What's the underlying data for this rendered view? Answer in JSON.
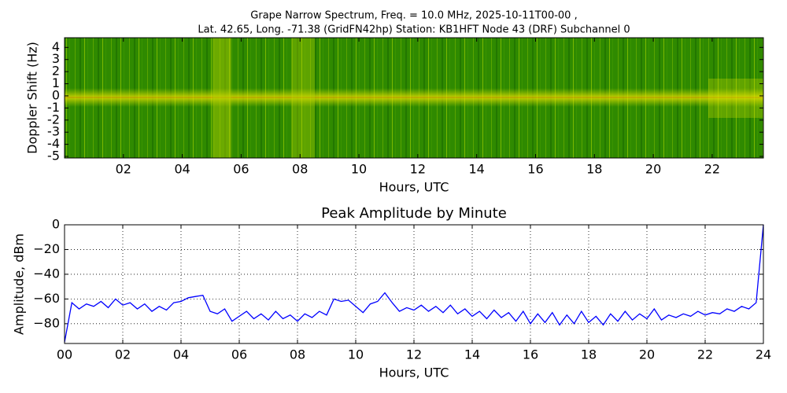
{
  "chart_data": [
    {
      "type": "spectrogram",
      "title": "Grape Narrow Spectrum, Freq. = 10.0 MHz, 2025-10-11T00-00 ,",
      "subtitle": "Lat.  42.65, Long. -71.38 (GridFN42hp) Station: KB1HFT Node 43 (DRF) Subchannel 0",
      "ylabel": "Doppler Shift (Hz)",
      "xlabel": "Hours, UTC",
      "xlim": [
        0,
        23.74
      ],
      "ylim": [
        -5.13,
        4.8
      ],
      "xticks": [
        {
          "value": 2,
          "label": "02"
        },
        {
          "value": 4,
          "label": "04"
        },
        {
          "value": 6,
          "label": "06"
        },
        {
          "value": 8,
          "label": "08"
        },
        {
          "value": 10,
          "label": "10"
        },
        {
          "value": 12,
          "label": "12"
        },
        {
          "value": 14,
          "label": "14"
        },
        {
          "value": 16,
          "label": "16"
        },
        {
          "value": 18,
          "label": "18"
        },
        {
          "value": 20,
          "label": "20"
        },
        {
          "value": 22,
          "label": "22"
        }
      ],
      "yticks": [
        4,
        3,
        2,
        1,
        0,
        -1,
        -2,
        -3,
        -4,
        -5
      ]
    },
    {
      "type": "line",
      "title": "Peak Amplitude by Minute",
      "ylabel": "Amplitude, dBm",
      "xlabel": "Hours, UTC",
      "xlim": [
        0,
        24
      ],
      "ylim": [
        -96,
        0
      ],
      "grid": true,
      "xticks": [
        {
          "value": 0,
          "label": "00"
        },
        {
          "value": 2,
          "label": "02"
        },
        {
          "value": 4,
          "label": "04"
        },
        {
          "value": 6,
          "label": "06"
        },
        {
          "value": 8,
          "label": "08"
        },
        {
          "value": 10,
          "label": "10"
        },
        {
          "value": 12,
          "label": "12"
        },
        {
          "value": 14,
          "label": "14"
        },
        {
          "value": 16,
          "label": "16"
        },
        {
          "value": 18,
          "label": "18"
        },
        {
          "value": 20,
          "label": "20"
        },
        {
          "value": 22,
          "label": "22"
        },
        {
          "value": 24,
          "label": "24"
        }
      ],
      "yticks": [
        0,
        {
          "value": -20,
          "label": "−20"
        },
        {
          "value": -40,
          "label": "−40"
        },
        {
          "value": -60,
          "label": "−60"
        },
        {
          "value": -80,
          "label": "−80"
        }
      ],
      "color": "#0000ff",
      "x": [
        0,
        0.25,
        0.5,
        0.75,
        1,
        1.25,
        1.5,
        1.75,
        2,
        2.25,
        2.5,
        2.75,
        3,
        3.25,
        3.5,
        3.75,
        4,
        4.25,
        4.5,
        4.75,
        5,
        5.25,
        5.5,
        5.75,
        6,
        6.25,
        6.5,
        6.75,
        7,
        7.25,
        7.5,
        7.75,
        8,
        8.25,
        8.5,
        8.75,
        9,
        9.25,
        9.5,
        9.75,
        10,
        10.25,
        10.5,
        10.75,
        11,
        11.25,
        11.5,
        11.75,
        12,
        12.25,
        12.5,
        12.75,
        13,
        13.25,
        13.5,
        13.75,
        14,
        14.25,
        14.5,
        14.75,
        15,
        15.25,
        15.5,
        15.75,
        16,
        16.25,
        16.5,
        16.75,
        17,
        17.25,
        17.5,
        17.75,
        18,
        18.25,
        18.5,
        18.75,
        19,
        19.25,
        19.5,
        19.75,
        20,
        20.25,
        20.5,
        20.75,
        21,
        21.25,
        21.5,
        21.75,
        22,
        22.25,
        22.5,
        22.75,
        23,
        23.25,
        23.5,
        23.75,
        24
      ],
      "values": [
        -95,
        -63,
        -68,
        -64,
        -66,
        -62,
        -67,
        -60,
        -65,
        -63,
        -68,
        -64,
        -70,
        -66,
        -69,
        -63,
        -62,
        -59,
        -58,
        -57,
        -70,
        -72,
        -68,
        -78,
        -74,
        -70,
        -76,
        -72,
        -77,
        -70,
        -76,
        -73,
        -78,
        -72,
        -75,
        -70,
        -73,
        -60,
        -62,
        -61,
        -66,
        -71,
        -64,
        -62,
        -55,
        -63,
        -70,
        -67,
        -69,
        -65,
        -70,
        -66,
        -71,
        -65,
        -72,
        -68,
        -74,
        -70,
        -76,
        -69,
        -75,
        -71,
        -78,
        -70,
        -80,
        -72,
        -79,
        -71,
        -81,
        -73,
        -80,
        -70,
        -79,
        -74,
        -81,
        -72,
        -78,
        -70,
        -77,
        -72,
        -76,
        -68,
        -77,
        -73,
        -75,
        -72,
        -74,
        -70,
        -73,
        -71,
        -72,
        -68,
        -70,
        -66,
        -68,
        -63,
        0
      ]
    }
  ]
}
